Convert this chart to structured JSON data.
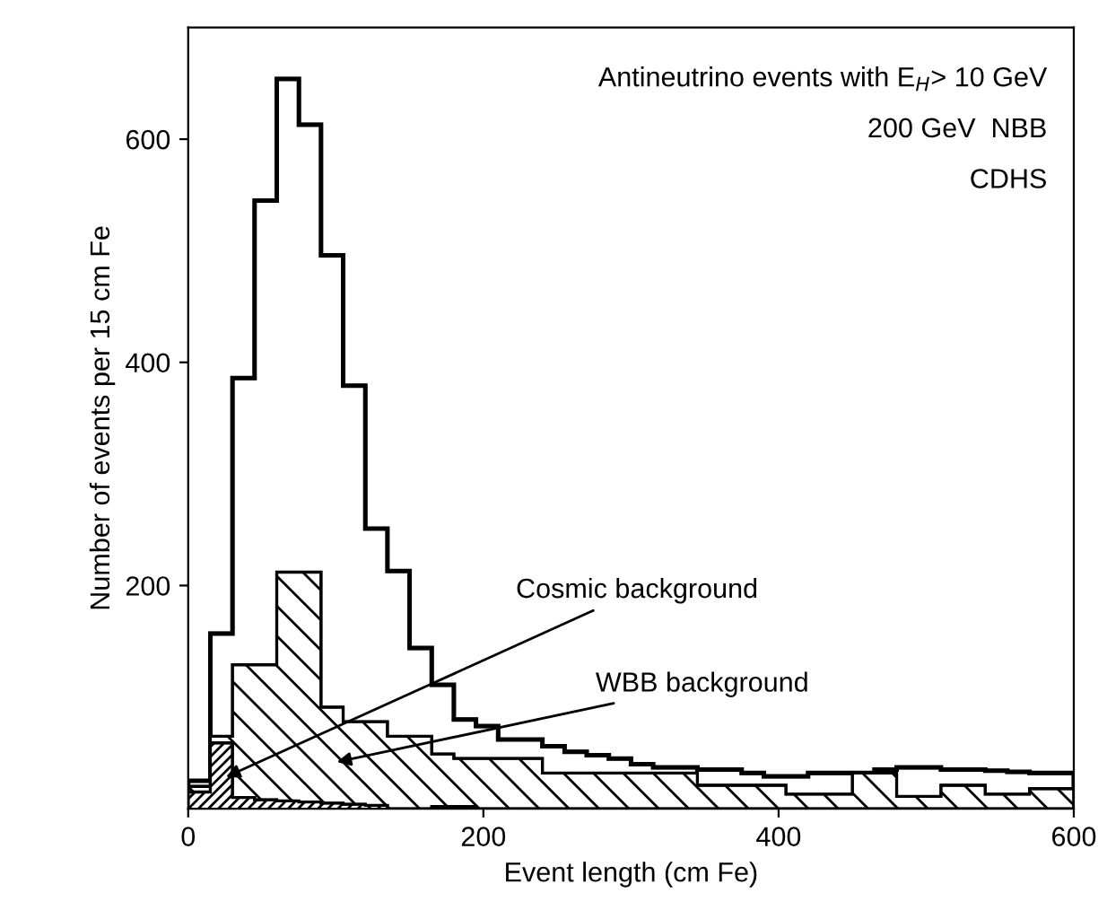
{
  "chart_data": {
    "type": "histogram",
    "xlabel": "Event length (cm Fe)",
    "ylabel": "Number of events per 15 cm Fe",
    "annotations": [
      "Antineutrino events with E$_{H}$> 10 GeV",
      "200 GeV  NBB",
      "CDHS"
    ],
    "bins": [
      0,
      15,
      30,
      45,
      60,
      75,
      90,
      105,
      120,
      135,
      150,
      165,
      180,
      195,
      210,
      225,
      240,
      255,
      270,
      285,
      300,
      315,
      330,
      345,
      360,
      375,
      390,
      405,
      420,
      435,
      450,
      465,
      480,
      495,
      510,
      525,
      540,
      555,
      570,
      585,
      600
    ],
    "series": [
      {
        "color": "#000000",
        "values": [
          25,
          157,
          386,
          545,
          654,
          613,
          496,
          379,
          251,
          213,
          144,
          111,
          80,
          74,
          62,
          62,
          56,
          51,
          48,
          45,
          40,
          37,
          37,
          35,
          35,
          32,
          29,
          29,
          32,
          32,
          32,
          35,
          37,
          37,
          35,
          35,
          34,
          33,
          32,
          32
        ]
      },
      {
        "name": "WBB background",
        "color": "#000000",
        "values": [
          20,
          65,
          129,
          129,
          212,
          212,
          91,
          78,
          78,
          65,
          65,
          49,
          45,
          45,
          45,
          45,
          32,
          32,
          32,
          32,
          32,
          32,
          32,
          21,
          21,
          21,
          21,
          13,
          13,
          13,
          32,
          32,
          11,
          11,
          21,
          21,
          13,
          13,
          18,
          18
        ]
      },
      {
        "name": "Cosmic background",
        "color": "#000000",
        "values": [
          15,
          59,
          10,
          8,
          7,
          6,
          5,
          4,
          3,
          0,
          0,
          2,
          2,
          0,
          0,
          0,
          0,
          0,
          0,
          0,
          0,
          0,
          0,
          0,
          0,
          0,
          0,
          0,
          0,
          0,
          0,
          0,
          0,
          0,
          0,
          0,
          0,
          0,
          0,
          0
        ]
      }
    ],
    "xlim": [
      0,
      600
    ],
    "ylim": [
      0,
      700
    ],
    "xticks": [
      0,
      200,
      400,
      600
    ],
    "yticks": [
      200,
      400,
      600
    ],
    "grid": false,
    "legend": false
  }
}
